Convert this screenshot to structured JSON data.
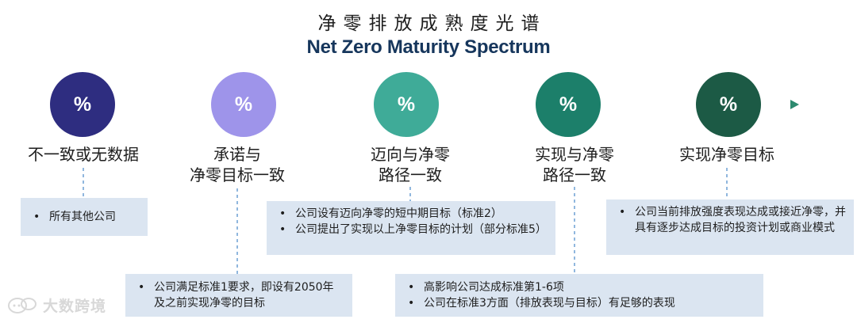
{
  "title_cn": "净零排放成熟度光谱",
  "title_en": "Net Zero Maturity Spectrum",
  "stages": [
    {
      "symbol": "%",
      "label": [
        "不一致或无数据"
      ],
      "color": "#2e2d80",
      "bullets": [
        "所有其他公司"
      ]
    },
    {
      "symbol": "%",
      "label": [
        "承诺与",
        "净零目标一致"
      ],
      "color": "#9e94ea",
      "bullets": [
        "公司满足标准1要求，即设有2050年及之前实现净零的目标"
      ]
    },
    {
      "symbol": "%",
      "label": [
        "迈向与净零",
        "路径一致"
      ],
      "color": "#3fab98",
      "bullets": [
        "公司设有迈向净零的短中期目标（标准2）",
        "公司提出了实现以上净零目标的计划（部分标准5）"
      ]
    },
    {
      "symbol": "%",
      "label": [
        "实现与净零",
        "路径一致"
      ],
      "color": "#1c7f6a",
      "bullets": [
        "高影响公司达成标准第1-6项",
        "公司在标准3方面（排放表现与目标）有足够的表现"
      ]
    },
    {
      "symbol": "%",
      "label": [
        "实现净零目标"
      ],
      "color": "#1c5a45",
      "bullets": [
        "公司当前排放强度表现达成或接近净零，并具有逐步达成目标的投资计划或商业模式"
      ]
    }
  ],
  "watermark": "大数跨境",
  "colors": {
    "axis_start": "#1f3f8a",
    "axis_end": "#2d8a6f",
    "box_bg": "#dbe5f1",
    "title_en": "#16365c"
  },
  "icons": {
    "watermark_logo": "chat-bubbles-icon"
  }
}
